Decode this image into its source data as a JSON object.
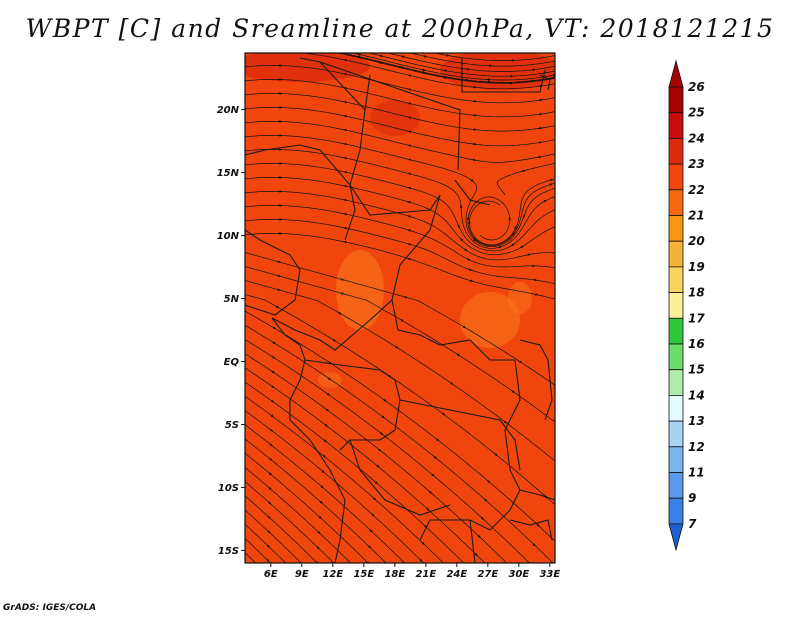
{
  "title": "WBPT [C] and Sreamline at 200hPa, VT: 2018121215",
  "credit": "GrADS: IGES/COLA",
  "map": {
    "lon_range": [
      3.5,
      33.5
    ],
    "lat_range": [
      -16,
      24.5
    ],
    "lat_ticks": [
      {
        "value": 20,
        "label": "20N"
      },
      {
        "value": 15,
        "label": "15N"
      },
      {
        "value": 10,
        "label": "10N"
      },
      {
        "value": 5,
        "label": "5N"
      },
      {
        "value": 0,
        "label": "EQ"
      },
      {
        "value": -5,
        "label": "5S"
      },
      {
        "value": -10,
        "label": "10S"
      },
      {
        "value": -15,
        "label": "15S"
      }
    ],
    "lon_ticks": [
      {
        "value": 6,
        "label": "6E"
      },
      {
        "value": 9,
        "label": "9E"
      },
      {
        "value": 12,
        "label": "12E"
      },
      {
        "value": 15,
        "label": "15E"
      },
      {
        "value": 18,
        "label": "18E"
      },
      {
        "value": 21,
        "label": "21E"
      },
      {
        "value": 24,
        "label": "24E"
      },
      {
        "value": 27,
        "label": "27E"
      },
      {
        "value": 30,
        "label": "30E"
      },
      {
        "value": 33,
        "label": "33E"
      }
    ],
    "field_colors": {
      "base": "#f0460e",
      "warm": "#dd2c0c",
      "cool": "#f7741c",
      "coast_line": "#1a1a1a",
      "streamline": "#111111"
    }
  },
  "colorbar": {
    "levels": [
      "26",
      "25",
      "24",
      "23",
      "22",
      "21",
      "20",
      "19",
      "18",
      "17",
      "16",
      "15",
      "14",
      "13",
      "12",
      "11",
      "9",
      "7"
    ],
    "colors": [
      "#a50404",
      "#c60c0c",
      "#dd2c0c",
      "#f0460e",
      "#f86a12",
      "#fa9614",
      "#f7b23a",
      "#f9d35f",
      "#fbef98",
      "#2fc63a",
      "#6bdb6a",
      "#b0ecaa",
      "#e4fbfd",
      "#a6d4f2",
      "#7bb6ee",
      "#5b9aea",
      "#3b80e4",
      "#1c60d0"
    ]
  }
}
